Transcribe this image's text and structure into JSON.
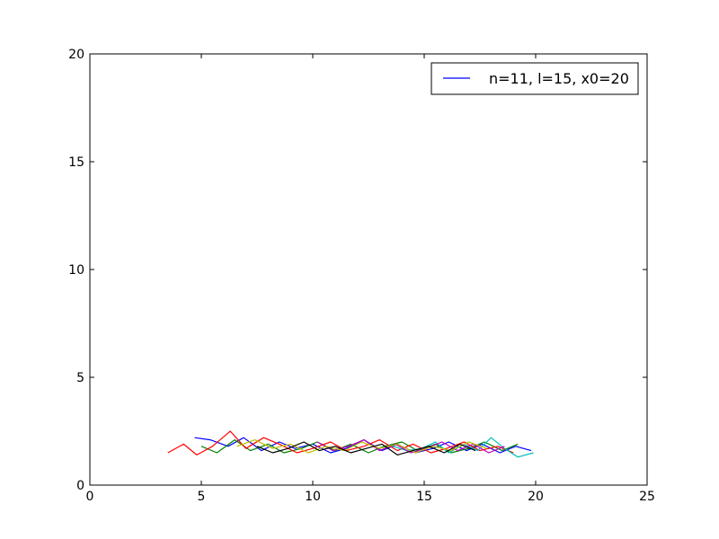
{
  "chart_data": {
    "type": "line",
    "title": "",
    "xlabel": "",
    "ylabel": "",
    "xlim": [
      0,
      25
    ],
    "ylim": [
      0,
      20
    ],
    "xticks": [
      0,
      5,
      10,
      15,
      20,
      25
    ],
    "yticks": [
      0,
      5,
      10,
      15,
      20
    ],
    "grid": false,
    "legend": {
      "placement": "top-right",
      "entries": [
        {
          "label": "n=11, l=15, x0=20",
          "color": "#0000ff"
        }
      ]
    },
    "colors": [
      "#0000ff",
      "#008000",
      "#ff0000",
      "#00bfbf",
      "#bf00bf",
      "#bfbf00",
      "#000000"
    ],
    "series": [
      {
        "color": "#0000ff",
        "x": [
          19.8,
          19.1,
          18.4,
          17.6,
          16.9,
          16.1,
          15.4,
          14.6,
          13.8,
          13.1,
          12.3,
          11.5,
          10.8,
          10.0,
          9.2,
          8.5,
          7.7,
          6.9,
          6.2,
          5.4,
          4.7
        ],
        "y": [
          1.6,
          1.8,
          1.5,
          1.9,
          1.6,
          2.0,
          1.7,
          1.5,
          1.9,
          1.6,
          2.1,
          1.7,
          1.5,
          1.9,
          1.7,
          2.0,
          1.6,
          2.2,
          1.8,
          2.1,
          2.2
        ]
      },
      {
        "color": "#008000",
        "x": [
          19.2,
          18.5,
          17.7,
          17.0,
          16.2,
          15.5,
          14.7,
          14.0,
          13.2,
          12.5,
          11.7,
          11.0,
          10.2,
          9.5,
          8.7,
          8.0,
          7.2,
          6.5,
          5.7,
          5.0
        ],
        "y": [
          1.9,
          1.6,
          2.0,
          1.7,
          1.5,
          1.9,
          1.6,
          2.0,
          1.8,
          1.5,
          1.9,
          1.6,
          2.0,
          1.7,
          1.5,
          1.9,
          1.6,
          2.1,
          1.5,
          1.8
        ]
      },
      {
        "color": "#ff0000",
        "x": [
          19.0,
          18.3,
          17.5,
          16.8,
          16.0,
          15.3,
          14.5,
          13.8,
          13.0,
          12.3,
          11.5,
          10.8,
          10.0,
          9.3,
          8.5,
          7.8,
          7.0,
          6.3,
          5.5,
          4.8,
          4.2,
          3.5
        ],
        "y": [
          1.5,
          1.8,
          1.6,
          2.0,
          1.7,
          1.5,
          1.9,
          1.6,
          2.1,
          1.8,
          1.6,
          2.0,
          1.7,
          1.5,
          1.9,
          2.2,
          1.7,
          2.5,
          1.8,
          1.4,
          1.9,
          1.5
        ]
      },
      {
        "color": "#00bfbf",
        "x": [
          19.9,
          19.2,
          18.6,
          18.0,
          17.4,
          16.8,
          16.1,
          15.5,
          14.9,
          14.2,
          13.6
        ],
        "y": [
          1.5,
          1.3,
          1.7,
          2.2,
          1.6,
          1.9,
          1.5,
          2.0,
          1.7,
          1.6,
          1.8
        ]
      },
      {
        "color": "#bf00bf",
        "x": [
          18.6,
          17.9,
          17.2,
          16.5,
          15.8,
          15.1,
          14.4,
          13.7,
          13.0,
          12.3,
          11.6,
          10.9,
          10.2
        ],
        "y": [
          1.8,
          1.5,
          1.9,
          1.6,
          2.0,
          1.7,
          1.5,
          1.9,
          1.6,
          2.1,
          1.8,
          1.6,
          2.0
        ]
      },
      {
        "color": "#bfbf00",
        "x": [
          17.8,
          17.0,
          16.2,
          15.4,
          14.6,
          13.8,
          13.0,
          12.2,
          11.4,
          10.6,
          9.8,
          9.0,
          8.2,
          7.4,
          6.6
        ],
        "y": [
          1.7,
          2.0,
          1.6,
          1.8,
          1.5,
          1.9,
          1.7,
          2.0,
          1.6,
          1.8,
          1.5,
          1.9,
          1.7,
          2.1,
          1.8
        ]
      },
      {
        "color": "#000000",
        "x": [
          17.3,
          16.6,
          15.9,
          15.2,
          14.5,
          13.8,
          13.1,
          12.4,
          11.7,
          11.0,
          10.3,
          9.6,
          8.9,
          8.2,
          7.5
        ],
        "y": [
          1.6,
          1.9,
          1.5,
          1.8,
          1.6,
          1.4,
          1.9,
          1.7,
          1.5,
          1.8,
          1.6,
          2.0,
          1.7,
          1.5,
          1.8
        ]
      }
    ]
  }
}
